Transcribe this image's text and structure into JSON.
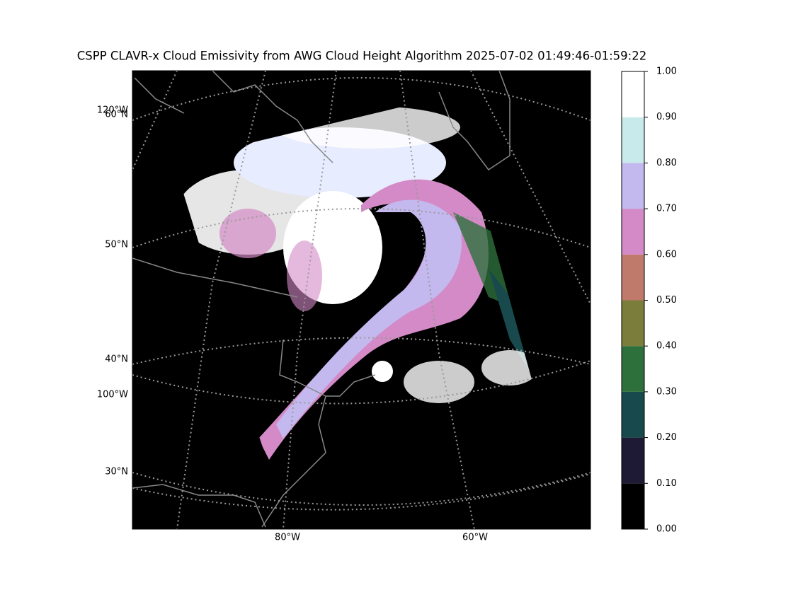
{
  "title": "CSPP CLAVR-x Cloud Emissivity from AWG Cloud Height Algorithm 2025-07-02 01:49:46-01:59:22",
  "map": {
    "lat_labels": [
      "60°N",
      "50°N",
      "40°N",
      "30°N"
    ],
    "lon_labels_left": [
      "120°W",
      "100°W"
    ],
    "lon_labels_bottom": [
      "80°W",
      "60°W"
    ]
  },
  "colorbar": {
    "lim": [
      0,
      1
    ],
    "ticks": [
      {
        "value": 0,
        "label": "0.00"
      },
      {
        "value": 0.1,
        "label": "0.10"
      },
      {
        "value": 0.2,
        "label": "0.20"
      },
      {
        "value": 0.3,
        "label": "0.30"
      },
      {
        "value": 0.4,
        "label": "0.40"
      },
      {
        "value": 0.5,
        "label": "0.50"
      },
      {
        "value": 0.6,
        "label": "0.60"
      },
      {
        "value": 0.7,
        "label": "0.70"
      },
      {
        "value": 0.8,
        "label": "0.80"
      },
      {
        "value": 0.9,
        "label": "0.90"
      },
      {
        "value": 1,
        "label": "1.00"
      }
    ],
    "colors": [
      "#000000",
      "#1e1935",
      "#184a4d",
      "#2e703c",
      "#7b7d3a",
      "#c07a6b",
      "#d38ac6",
      "#c3b9ee",
      "#c9eaeb",
      "#ffffff"
    ]
  }
}
